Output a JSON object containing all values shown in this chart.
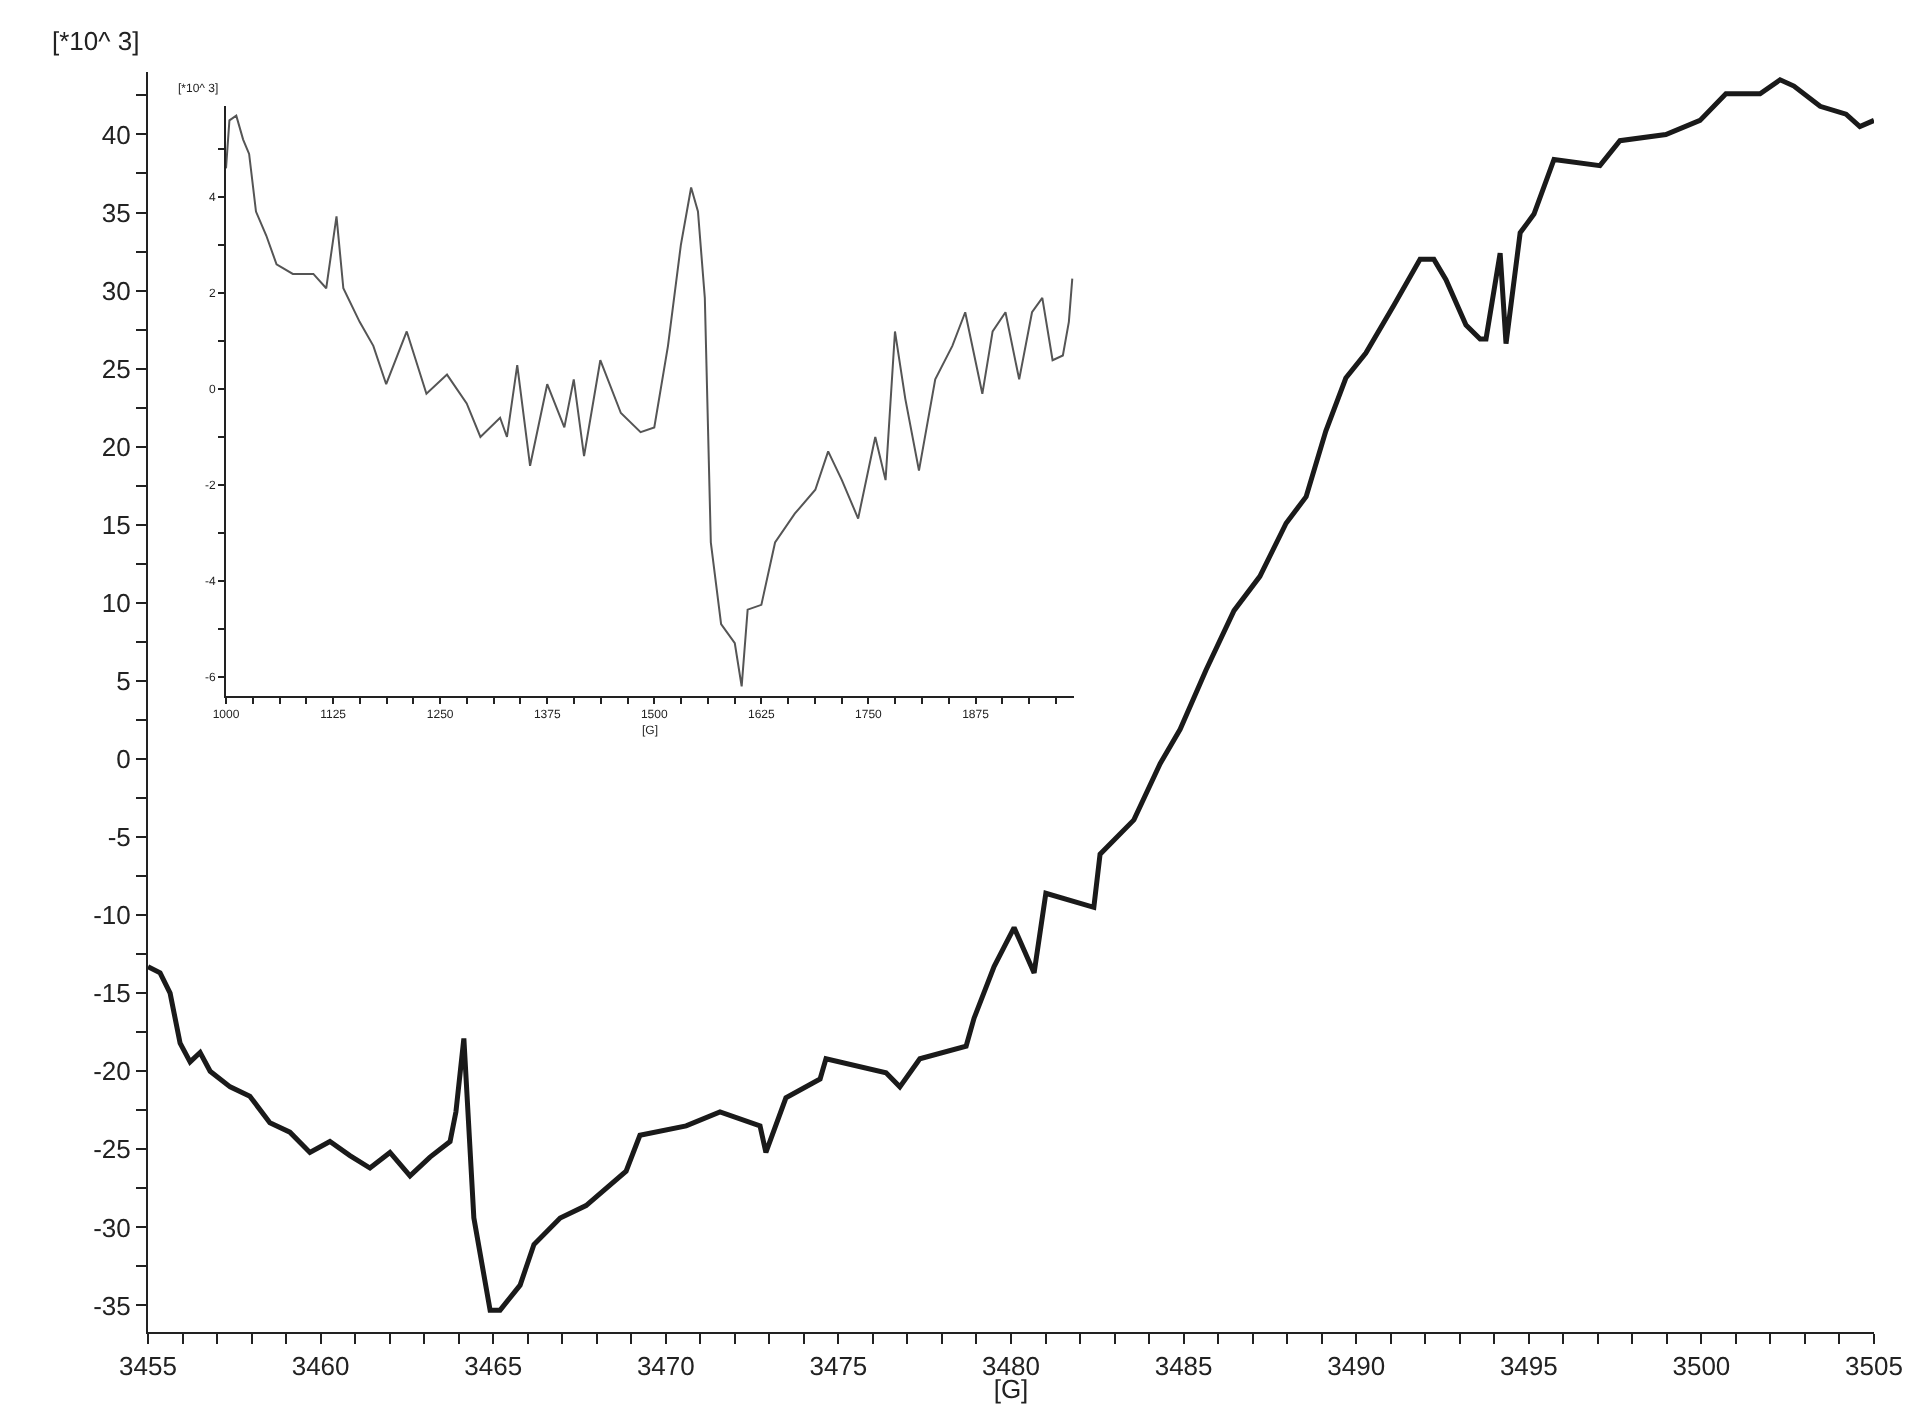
{
  "chart_data": [
    {
      "type": "line",
      "xlabel": "[G]",
      "ylabel": "[*10^ 3]",
      "color": "#1a1a1a",
      "x": [
        3455.0,
        3455.35,
        3455.64,
        3455.93,
        3456.22,
        3456.51,
        3456.8,
        3457.38,
        3457.95,
        3458.53,
        3459.11,
        3459.69,
        3460.27,
        3460.85,
        3461.43,
        3462.01,
        3462.59,
        3463.17,
        3463.75,
        3463.92,
        3464.15,
        3464.44,
        3464.91,
        3465.2,
        3465.78,
        3466.18,
        3466.94,
        3467.69,
        3468.85,
        3469.25,
        3470.59,
        3471.57,
        3472.73,
        3472.9,
        3473.48,
        3474.47,
        3474.64,
        3476.38,
        3476.78,
        3477.36,
        3478.7,
        3478.93,
        3479.51,
        3480.09,
        3480.67,
        3481.01,
        3482.4,
        3482.58,
        3483.56,
        3484.32,
        3484.9,
        3485.65,
        3486.46,
        3487.21,
        3487.97,
        3488.55,
        3489.12,
        3489.7,
        3490.28,
        3491.1,
        3491.85,
        3492.25,
        3492.6,
        3493.18,
        3493.59,
        3493.76,
        3494.17,
        3494.34,
        3494.75,
        3495.15,
        3495.73,
        3497.06,
        3497.64,
        3498.97,
        3499.96,
        3500.71,
        3501.7,
        3502.28,
        3502.68,
        3503.44,
        3504.19,
        3504.59,
        3505.0
      ],
      "values": [
        -13.3,
        -13.7,
        -15,
        -18.2,
        -19.4,
        -18.8,
        -20,
        -21,
        -21.6,
        -23.3,
        -23.9,
        -25.2,
        -24.5,
        -25.4,
        -26.2,
        -25.2,
        -26.7,
        -25.5,
        -24.5,
        -22.6,
        -17.9,
        -29.4,
        -35.3,
        -35.3,
        -33.7,
        -31.1,
        -29.4,
        -28.6,
        -26.4,
        -24.1,
        -23.5,
        -22.6,
        -23.5,
        -25.2,
        -21.7,
        -20.5,
        -19.2,
        -20.1,
        -21,
        -19.2,
        -18.4,
        -16.6,
        -13.3,
        -10.8,
        -13.7,
        -8.6,
        -9.5,
        -6.1,
        -3.9,
        -0.3,
        1.9,
        5.7,
        9.5,
        11.7,
        15.1,
        16.8,
        21,
        24.4,
        26,
        29.1,
        32,
        32,
        30.7,
        27.8,
        26.9,
        26.9,
        32.4,
        26.6,
        33.7,
        34.9,
        38.4,
        38,
        39.6,
        40,
        40.9,
        42.6,
        42.6,
        43.5,
        43.1,
        41.8,
        41.3,
        40.5,
        40.9
      ],
      "xlim": [
        3455,
        3505
      ],
      "ylim": [
        -36.7,
        44
      ],
      "xticks": [
        3455,
        {
          "value": 3456,
          "label": null
        },
        {
          "value": 3457,
          "label": null
        },
        {
          "value": 3458,
          "label": null
        },
        {
          "value": 3459,
          "label": null
        },
        3460,
        {
          "value": 3461,
          "label": null
        },
        {
          "value": 3462,
          "label": null
        },
        {
          "value": 3463,
          "label": null
        },
        {
          "value": 3464,
          "label": null
        },
        3465,
        {
          "value": 3466,
          "label": null
        },
        {
          "value": 3467,
          "label": null
        },
        {
          "value": 3468,
          "label": null
        },
        {
          "value": 3469,
          "label": null
        },
        3470,
        {
          "value": 3471,
          "label": null
        },
        {
          "value": 3472,
          "label": null
        },
        {
          "value": 3473,
          "label": null
        },
        {
          "value": 3474,
          "label": null
        },
        3475,
        {
          "value": 3476,
          "label": null
        },
        {
          "value": 3477,
          "label": null
        },
        {
          "value": 3478,
          "label": null
        },
        {
          "value": 3479,
          "label": null
        },
        3480,
        {
          "value": 3481,
          "label": null
        },
        {
          "value": 3482,
          "label": null
        },
        {
          "value": 3483,
          "label": null
        },
        {
          "value": 3484,
          "label": null
        },
        3485,
        {
          "value": 3486,
          "label": null
        },
        {
          "value": 3487,
          "label": null
        },
        {
          "value": 3488,
          "label": null
        },
        {
          "value": 3489,
          "label": null
        },
        3490,
        {
          "value": 3491,
          "label": null
        },
        {
          "value": 3492,
          "label": null
        },
        {
          "value": 3493,
          "label": null
        },
        {
          "value": 3494,
          "label": null
        },
        3495,
        {
          "value": 3496,
          "label": null
        },
        {
          "value": 3497,
          "label": null
        },
        {
          "value": 3498,
          "label": null
        },
        {
          "value": 3499,
          "label": null
        },
        3500,
        {
          "value": 3501,
          "label": null
        },
        {
          "value": 3502,
          "label": null
        },
        {
          "value": 3503,
          "label": null
        },
        {
          "value": 3504,
          "label": null
        },
        3505
      ],
      "yticks": [
        -35,
        {
          "value": -32.5,
          "label": null
        },
        -30,
        {
          "value": -27.5,
          "label": null
        },
        -25,
        {
          "value": -22.5,
          "label": null
        },
        -20,
        {
          "value": -17.5,
          "label": null
        },
        -15,
        {
          "value": -12.5,
          "label": null
        },
        -10,
        {
          "value": -7.5,
          "label": null
        },
        -5,
        {
          "value": -2.5,
          "label": null
        },
        0,
        {
          "value": 2.5,
          "label": null
        },
        5,
        {
          "value": 7.5,
          "label": null
        },
        10,
        {
          "value": 12.5,
          "label": null
        },
        15,
        {
          "value": 17.5,
          "label": null
        },
        20,
        {
          "value": 22.5,
          "label": null
        },
        25,
        {
          "value": 27.5,
          "label": null
        },
        30,
        {
          "value": 32.5,
          "label": null
        },
        35,
        {
          "value": 37.5,
          "label": null
        },
        40,
        {
          "value": 42.5,
          "label": null
        }
      ]
    },
    {
      "type": "line",
      "xlabel": "[G]",
      "ylabel": "[*10^ 3]",
      "color": "#555555",
      "x": [
        1000,
        1004,
        1012,
        1020,
        1027,
        1035,
        1047,
        1059,
        1078,
        1102,
        1117,
        1129,
        1137,
        1156,
        1172,
        1187,
        1211,
        1234,
        1258,
        1281,
        1297,
        1320,
        1328,
        1340,
        1355,
        1375,
        1395,
        1406,
        1418,
        1437,
        1461,
        1484,
        1500,
        1516,
        1531,
        1543,
        1551,
        1559,
        1566,
        1578,
        1594,
        1602,
        1609,
        1625,
        1641,
        1664,
        1688,
        1703,
        1719,
        1738,
        1758,
        1770,
        1781,
        1793,
        1809,
        1828,
        1848,
        1863,
        1883,
        1895,
        1910,
        1926,
        1941,
        1953,
        1965,
        1977,
        1984,
        1988
      ],
      "values": [
        4.6,
        5.6,
        5.7,
        5.2,
        4.9,
        3.7,
        3.2,
        2.6,
        2.4,
        2.4,
        2.1,
        3.6,
        2.1,
        1.4,
        0.9,
        0.1,
        1.2,
        -0.1,
        0.3,
        -0.3,
        -1.0,
        -0.6,
        -1.0,
        0.5,
        -1.6,
        0.1,
        -0.8,
        0.2,
        -1.4,
        0.6,
        -0.5,
        -0.9,
        -0.8,
        0.9,
        3.0,
        4.2,
        3.7,
        1.9,
        -3.2,
        -4.9,
        -5.3,
        -6.2,
        -4.6,
        -4.5,
        -3.2,
        -2.6,
        -2.1,
        -1.3,
        -1.9,
        -2.7,
        -1.0,
        -1.9,
        1.2,
        -0.2,
        -1.7,
        0.2,
        0.9,
        1.6,
        -0.1,
        1.2,
        1.6,
        0.2,
        1.6,
        1.9,
        0.6,
        0.7,
        1.4,
        2.3
      ],
      "xlim": [
        1000,
        1990
      ],
      "ylim": [
        -6.4,
        5.9
      ],
      "xticks": [
        1000,
        {
          "value": 1031.25,
          "label": null
        },
        {
          "value": 1062.5,
          "label": null
        },
        {
          "value": 1093.75,
          "label": null
        },
        1125,
        {
          "value": 1156.25,
          "label": null
        },
        {
          "value": 1187.5,
          "label": null
        },
        {
          "value": 1218.75,
          "label": null
        },
        1250,
        {
          "value": 1281.25,
          "label": null
        },
        {
          "value": 1312.5,
          "label": null
        },
        {
          "value": 1343.75,
          "label": null
        },
        1375,
        {
          "value": 1406.25,
          "label": null
        },
        {
          "value": 1437.5,
          "label": null
        },
        {
          "value": 1468.75,
          "label": null
        },
        1500,
        {
          "value": 1531.25,
          "label": null
        },
        {
          "value": 1562.5,
          "label": null
        },
        {
          "value": 1593.75,
          "label": null
        },
        1625,
        {
          "value": 1656.25,
          "label": null
        },
        {
          "value": 1687.5,
          "label": null
        },
        {
          "value": 1718.75,
          "label": null
        },
        1750,
        {
          "value": 1781.25,
          "label": null
        },
        {
          "value": 1812.5,
          "label": null
        },
        {
          "value": 1843.75,
          "label": null
        },
        1875,
        {
          "value": 1906.25,
          "label": null
        },
        {
          "value": 1937.5,
          "label": null
        },
        {
          "value": 1968.75,
          "label": null
        }
      ],
      "yticks": [
        -6,
        {
          "value": -5,
          "label": null
        },
        -4,
        {
          "value": -3,
          "label": null
        },
        -2,
        {
          "value": -1,
          "label": null
        },
        0,
        {
          "value": 1,
          "label": null
        },
        2,
        {
          "value": 3,
          "label": null
        },
        4,
        {
          "value": 5,
          "label": null
        }
      ]
    }
  ]
}
